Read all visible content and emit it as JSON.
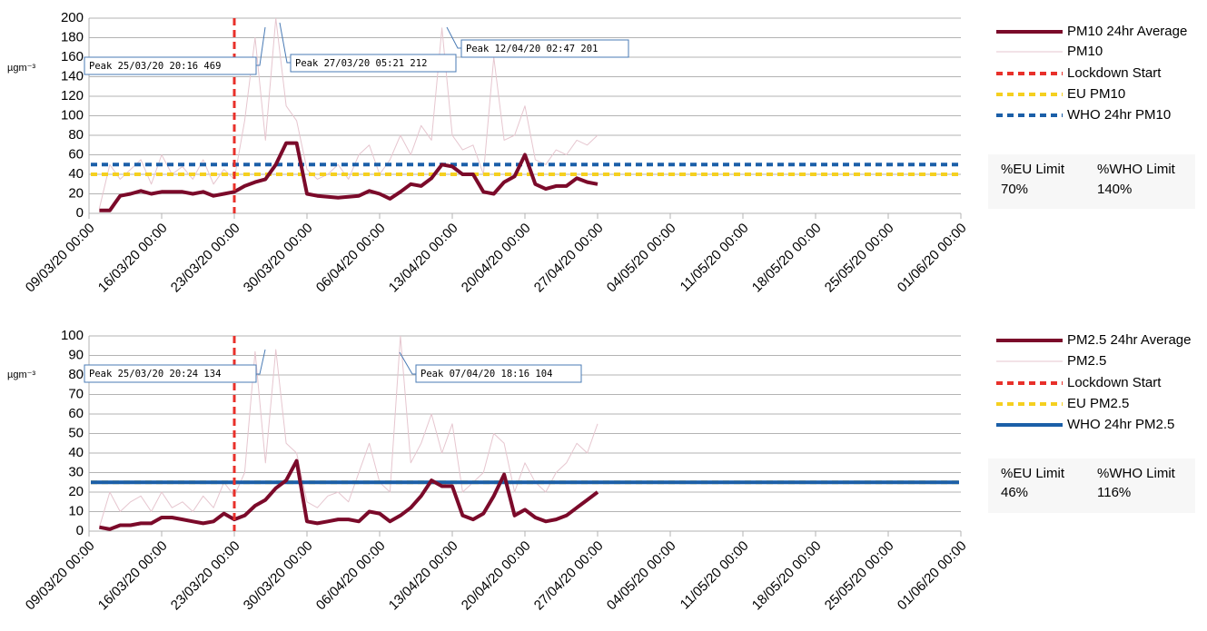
{
  "chart_data": [
    {
      "type": "line",
      "y_label": "µgm⁻³",
      "xlim": [
        "09/03/20 00:00",
        "01/06/20 00:00"
      ],
      "xticks": [
        "09/03/20 00:00",
        "16/03/20 00:00",
        "23/03/20 00:00",
        "30/03/20 00:00",
        "06/04/20 00:00",
        "13/04/20 00:00",
        "20/04/20 00:00",
        "27/04/20 00:00",
        "04/05/20 00:00",
        "11/05/20 00:00",
        "18/05/20 00:00",
        "25/05/20 00:00",
        "01/06/20 00:00"
      ],
      "ylim": [
        0,
        200
      ],
      "yticks": [
        0,
        20,
        40,
        60,
        80,
        100,
        120,
        140,
        160,
        180,
        200
      ],
      "grid": true,
      "x": [
        "10/03/20 00:00",
        "11/03/20 00:00",
        "12/03/20 00:00",
        "13/03/20 00:00",
        "14/03/20 00:00",
        "15/03/20 00:00",
        "16/03/20 00:00",
        "17/03/20 00:00",
        "18/03/20 00:00",
        "19/03/20 00:00",
        "20/03/20 00:00",
        "21/03/20 00:00",
        "22/03/20 00:00",
        "23/03/20 00:00",
        "24/03/20 00:00",
        "25/03/20 00:00",
        "26/03/20 00:00",
        "27/03/20 00:00",
        "28/03/20 00:00",
        "29/03/20 00:00",
        "30/03/20 00:00",
        "31/03/20 00:00",
        "01/04/20 00:00",
        "02/04/20 00:00",
        "03/04/20 00:00",
        "04/04/20 00:00",
        "05/04/20 00:00",
        "06/04/20 00:00",
        "07/04/20 00:00",
        "08/04/20 00:00",
        "09/04/20 00:00",
        "10/04/20 00:00",
        "11/04/20 00:00",
        "12/04/20 00:00",
        "13/04/20 00:00",
        "14/04/20 00:00",
        "15/04/20 00:00",
        "16/04/20 00:00",
        "17/04/20 00:00",
        "18/04/20 00:00",
        "19/04/20 00:00",
        "20/04/20 00:00",
        "21/04/20 00:00",
        "22/04/20 00:00",
        "23/04/20 00:00",
        "24/04/20 00:00",
        "25/04/20 00:00",
        "26/04/20 00:00",
        "27/04/20 00:00"
      ],
      "series": [
        {
          "name": "PM10",
          "color": "#e6c6cf",
          "width": 1,
          "values": [
            5,
            50,
            35,
            45,
            55,
            30,
            60,
            40,
            48,
            35,
            55,
            30,
            45,
            35,
            95,
            180,
            75,
            200,
            110,
            95,
            45,
            35,
            40,
            50,
            35,
            60,
            70,
            40,
            55,
            80,
            60,
            90,
            75,
            190,
            80,
            65,
            70,
            40,
            160,
            75,
            80,
            110,
            55,
            50,
            65,
            60,
            75,
            70,
            80
          ]
        },
        {
          "name": "PM10 24hr Average",
          "color": "#7b0a2a",
          "width": 4,
          "values": [
            3,
            3,
            18,
            20,
            23,
            20,
            22,
            22,
            22,
            20,
            22,
            18,
            20,
            22,
            28,
            32,
            35,
            50,
            72,
            72,
            20,
            18,
            17,
            16,
            17,
            18,
            23,
            20,
            15,
            22,
            30,
            28,
            36,
            50,
            48,
            40,
            40,
            22,
            20,
            32,
            38,
            60,
            30,
            25,
            28,
            28,
            36,
            32,
            30
          ]
        }
      ],
      "legend_order": [
        1,
        0
      ],
      "vlines": [
        {
          "name": "Lockdown Start",
          "color": "#e8302a",
          "x": "23/03/20 00:00",
          "dashed": true
        }
      ],
      "hlines": [
        {
          "name": "EU PM10",
          "color": "#f5d020",
          "value": 40,
          "dashed": true
        },
        {
          "name": "WHO 24hr PM10",
          "color": "#1b5fa8",
          "value": 50,
          "dashed": true
        }
      ],
      "annotations": [
        "Peak 25/03/20 20:16 469",
        "Peak 27/03/20 05:21 212",
        "Peak 12/04/20 02:47 201"
      ],
      "stats": {
        "labels": [
          "%EU Limit",
          "%WHO Limit"
        ],
        "values": [
          70,
          140
        ],
        "value_labels": [
          "70%",
          "140%"
        ]
      }
    },
    {
      "type": "line",
      "y_label": "µgm⁻³",
      "xlim": [
        "09/03/20 00:00",
        "01/06/20 00:00"
      ],
      "xticks": [
        "09/03/20 00:00",
        "16/03/20 00:00",
        "23/03/20 00:00",
        "30/03/20 00:00",
        "06/04/20 00:00",
        "13/04/20 00:00",
        "20/04/20 00:00",
        "27/04/20 00:00",
        "04/05/20 00:00",
        "11/05/20 00:00",
        "18/05/20 00:00",
        "25/05/20 00:00",
        "01/06/20 00:00"
      ],
      "ylim": [
        0,
        100
      ],
      "yticks": [
        0,
        10,
        20,
        30,
        40,
        50,
        60,
        70,
        80,
        90,
        100
      ],
      "grid": true,
      "x": [
        "10/03/20 00:00",
        "11/03/20 00:00",
        "12/03/20 00:00",
        "13/03/20 00:00",
        "14/03/20 00:00",
        "15/03/20 00:00",
        "16/03/20 00:00",
        "17/03/20 00:00",
        "18/03/20 00:00",
        "19/03/20 00:00",
        "20/03/20 00:00",
        "21/03/20 00:00",
        "22/03/20 00:00",
        "23/03/20 00:00",
        "24/03/20 00:00",
        "25/03/20 00:00",
        "26/03/20 00:00",
        "27/03/20 00:00",
        "28/03/20 00:00",
        "29/03/20 00:00",
        "30/03/20 00:00",
        "31/03/20 00:00",
        "01/04/20 00:00",
        "02/04/20 00:00",
        "03/04/20 00:00",
        "04/04/20 00:00",
        "05/04/20 00:00",
        "06/04/20 00:00",
        "07/04/20 00:00",
        "08/04/20 00:00",
        "09/04/20 00:00",
        "10/04/20 00:00",
        "11/04/20 00:00",
        "12/04/20 00:00",
        "13/04/20 00:00",
        "14/04/20 00:00",
        "15/04/20 00:00",
        "16/04/20 00:00",
        "17/04/20 00:00",
        "18/04/20 00:00",
        "19/04/20 00:00",
        "20/04/20 00:00",
        "21/04/20 00:00",
        "22/04/20 00:00",
        "23/04/20 00:00",
        "24/04/20 00:00",
        "25/04/20 00:00",
        "26/04/20 00:00",
        "27/04/20 00:00"
      ],
      "series": [
        {
          "name": "PM2.5",
          "color": "#e6c6cf",
          "width": 1,
          "values": [
            2,
            20,
            10,
            15,
            18,
            10,
            20,
            12,
            15,
            10,
            18,
            12,
            25,
            18,
            30,
            92,
            35,
            93,
            45,
            40,
            15,
            12,
            18,
            20,
            15,
            30,
            45,
            25,
            20,
            100,
            35,
            45,
            60,
            40,
            55,
            20,
            25,
            30,
            50,
            45,
            20,
            35,
            25,
            20,
            30,
            35,
            45,
            40,
            55
          ]
        },
        {
          "name": "PM2.5 24hr Average",
          "color": "#7b0a2a",
          "width": 4,
          "values": [
            2,
            1,
            3,
            3,
            4,
            4,
            7,
            7,
            6,
            5,
            4,
            5,
            9,
            6,
            8,
            13,
            16,
            22,
            26,
            36,
            5,
            4,
            5,
            6,
            6,
            5,
            10,
            9,
            5,
            8,
            12,
            18,
            26,
            23,
            23,
            8,
            6,
            9,
            18,
            29,
            8,
            11,
            7,
            5,
            6,
            8,
            12,
            16,
            20
          ]
        }
      ],
      "legend_order": [
        1,
        0
      ],
      "vlines": [
        {
          "name": "Lockdown Start",
          "color": "#e8302a",
          "x": "23/03/20 00:00",
          "dashed": true
        }
      ],
      "hlines": [
        {
          "name": "EU PM2.5",
          "color": "#f5d020",
          "value": 25,
          "dashed": true
        },
        {
          "name": "WHO 24hr PM2.5",
          "color": "#1b5fa8",
          "value": 25,
          "dashed": false
        }
      ],
      "annotations": [
        "Peak 25/03/20 20:24 134",
        "Peak 07/04/20 18:16 104"
      ],
      "stats": {
        "labels": [
          "%EU Limit",
          "%WHO Limit"
        ],
        "values": [
          46,
          116
        ],
        "value_labels": [
          "46%",
          "116%"
        ]
      }
    }
  ]
}
